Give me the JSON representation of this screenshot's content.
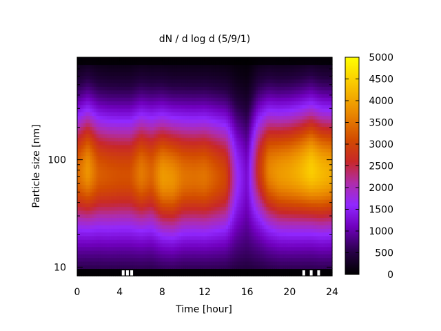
{
  "chart_data": {
    "type": "heatmap",
    "title": "dN / d log d (5/9/1)",
    "xlabel": "Time [hour]",
    "ylabel": "Particle size [nm]",
    "xlim": [
      0,
      24
    ],
    "ylim": [
      8.3,
      900
    ],
    "y_scale": "log",
    "x_ticks": [
      "0",
      "4",
      "8",
      "12",
      "16",
      "20",
      "24"
    ],
    "x_tick_values": [
      0,
      4,
      8,
      12,
      16,
      20,
      24
    ],
    "y_ticks": [
      "10",
      "100"
    ],
    "y_tick_values": [
      10,
      100
    ],
    "colorbar": {
      "range": [
        0,
        5000
      ],
      "ticks": [
        "0",
        "500",
        "1000",
        "1500",
        "2000",
        "2500",
        "3000",
        "3500",
        "4000",
        "4500",
        "5000"
      ],
      "tick_values": [
        0,
        500,
        1000,
        1500,
        2000,
        2500,
        3000,
        3500,
        4000,
        4500,
        5000
      ],
      "palette": "black-purple-red-orange-yellow"
    },
    "grid": false,
    "mode_peak": {
      "time_hour": [
        0,
        1,
        2,
        3,
        4,
        5,
        6,
        7,
        8,
        9,
        10,
        11,
        12,
        13,
        14,
        15,
        16,
        17,
        18,
        19,
        20,
        21,
        22,
        23,
        24
      ],
      "peak_size_nm": [
        80,
        85,
        80,
        78,
        78,
        78,
        80,
        80,
        75,
        72,
        75,
        75,
        75,
        75,
        75,
        80,
        85,
        90,
        85,
        80,
        80,
        82,
        85,
        80,
        80
      ],
      "peak_value": [
        3200,
        3700,
        3100,
        3000,
        2950,
        2950,
        3400,
        3150,
        3700,
        3600,
        3300,
        3250,
        3300,
        3050,
        2800,
        1500,
        1000,
        2500,
        3500,
        3700,
        3800,
        4000,
        4300,
        4050,
        3900
      ]
    }
  }
}
